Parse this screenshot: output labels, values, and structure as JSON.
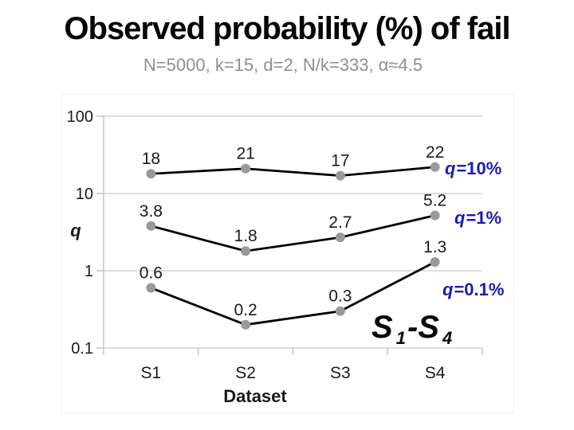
{
  "title": "Observed probability (%) of fail",
  "subtitle": "N=5000, k=15, d=2, N/k=333, α≈4.5",
  "chart_data": {
    "type": "line",
    "title": "Observed probability (%) of fail",
    "subtitle": "N=5000, k=15, d=2, N/k=333, α≈4.5",
    "xlabel": "Dataset",
    "ylabel": "q",
    "yscale": "log",
    "ylim": [
      0.1,
      100
    ],
    "yticks": [
      100,
      10,
      1,
      0.1
    ],
    "ytick_labels": [
      "100",
      "10",
      "1",
      "0.1"
    ],
    "grid": true,
    "legend_position": "right-of-last-point",
    "categories": [
      "S1",
      "S2",
      "S3",
      "S4"
    ],
    "series": [
      {
        "name": "q=10%",
        "label_q": "q",
        "label_rest": "=10%",
        "values": [
          18,
          21,
          17,
          22
        ],
        "data_labels": [
          "18",
          "21",
          "17",
          "22"
        ]
      },
      {
        "name": "q=1%",
        "label_q": "q",
        "label_rest": "=1%",
        "values": [
          3.8,
          1.8,
          2.7,
          5.2
        ],
        "data_labels": [
          "3.8",
          "1.8",
          "2.7",
          "5.2"
        ]
      },
      {
        "name": "q=0.1%",
        "label_q": "q",
        "label_rest": "=0.1%",
        "values": [
          0.6,
          0.2,
          0.3,
          1.3
        ],
        "data_labels": [
          "0.6",
          "0.2",
          "0.3",
          "1.3"
        ]
      }
    ],
    "annotation": {
      "base1": "S",
      "sub1": "1",
      "sep": "-",
      "base2": "S",
      "sub2": "4"
    },
    "colors": {
      "series_line": "#000000",
      "marker": "#999999",
      "legend_text": "#1b1bb3",
      "grid": "#c9c9c9",
      "axis": "#bdbdbd",
      "text": "#1a1a1a",
      "subtitle": "#8f8f8f"
    }
  }
}
